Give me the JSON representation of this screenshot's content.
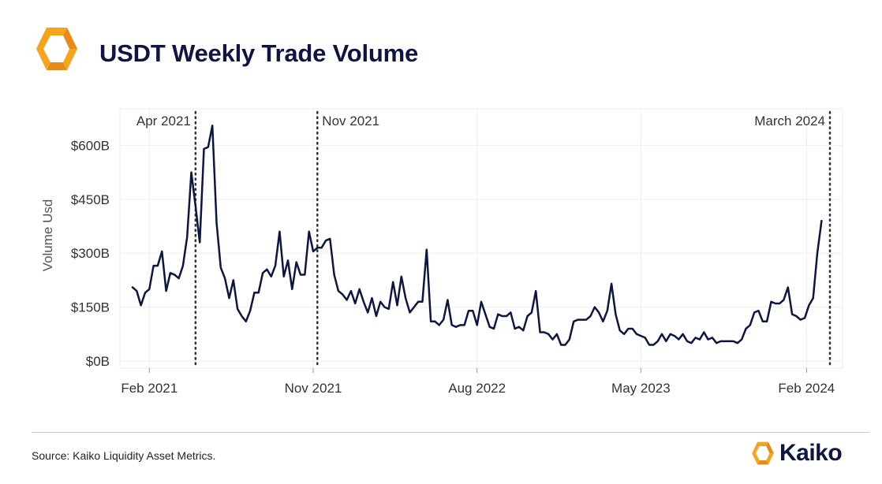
{
  "header": {
    "title": "USDT Weekly Trade Volume"
  },
  "footer": {
    "source": "Source: Kaiko Liquidity Asset Metrics.",
    "brand": "Kaiko"
  },
  "colors": {
    "line": "#0d1543",
    "brand_orange": "#f7a41d",
    "brand_orange_dark": "#e8891c",
    "grid": "#eeeeee"
  },
  "icons": {
    "header_logo": "kaiko-logo-icon",
    "footer_logo": "kaiko-logo-icon"
  },
  "chart_data": {
    "type": "line",
    "title": "USDT Weekly Trade Volume",
    "xlabel": "",
    "ylabel": "Volume Usd",
    "x_start": "2021-01-04",
    "x_step_days": 7,
    "xlim": [
      "2020-12-14",
      "2024-04-01"
    ],
    "ylim": [
      0,
      660
    ],
    "grid": true,
    "legend": "none",
    "y_ticks": [
      {
        "value": 0,
        "label": "$0B"
      },
      {
        "value": 150,
        "label": "$150B"
      },
      {
        "value": 300,
        "label": "$300B"
      },
      {
        "value": 450,
        "label": "$450B"
      },
      {
        "value": 600,
        "label": "$600B"
      }
    ],
    "x_ticks": [
      {
        "date": "2021-02-01",
        "label": "Feb 2021"
      },
      {
        "date": "2021-11-01",
        "label": "Nov 2021"
      },
      {
        "date": "2022-08-01",
        "label": "Aug 2022"
      },
      {
        "date": "2023-05-01",
        "label": "May 2023"
      },
      {
        "date": "2024-02-01",
        "label": "Feb 2024"
      }
    ],
    "annotations": [
      {
        "date": "2021-04-19",
        "label": "Apr 2021",
        "label_side": "left"
      },
      {
        "date": "2021-11-08",
        "label": "Nov 2021",
        "label_side": "right"
      },
      {
        "date": "2024-03-11",
        "label": "March 2024",
        "label_side": "left"
      }
    ],
    "series": [
      {
        "values": [
          205,
          195,
          155,
          190,
          200,
          265,
          265,
          305,
          195,
          245,
          240,
          230,
          265,
          345,
          525,
          430,
          330,
          590,
          595,
          655,
          385,
          260,
          230,
          175,
          225,
          145,
          125,
          110,
          140,
          190,
          190,
          245,
          255,
          235,
          265,
          360,
          235,
          280,
          200,
          275,
          240,
          240,
          360,
          305,
          315,
          315,
          335,
          340,
          240,
          195,
          185,
          170,
          195,
          160,
          200,
          165,
          135,
          175,
          125,
          165,
          150,
          145,
          220,
          155,
          235,
          175,
          135,
          150,
          165,
          165,
          310,
          110,
          110,
          100,
          115,
          170,
          100,
          95,
          100,
          100,
          140,
          140,
          100,
          165,
          130,
          95,
          90,
          130,
          125,
          125,
          135,
          90,
          95,
          85,
          125,
          135,
          195,
          80,
          80,
          75,
          60,
          75,
          45,
          45,
          60,
          110,
          115,
          115,
          115,
          125,
          150,
          135,
          110,
          140,
          215,
          130,
          85,
          75,
          90,
          90,
          75,
          70,
          65,
          45,
          45,
          55,
          75,
          55,
          75,
          70,
          60,
          75,
          55,
          50,
          65,
          60,
          80,
          60,
          65,
          50,
          55,
          55,
          55,
          55,
          50,
          60,
          90,
          100,
          135,
          140,
          110,
          110,
          165,
          160,
          160,
          170,
          205,
          130,
          125,
          115,
          120,
          155,
          175,
          300,
          390
        ]
      }
    ]
  }
}
